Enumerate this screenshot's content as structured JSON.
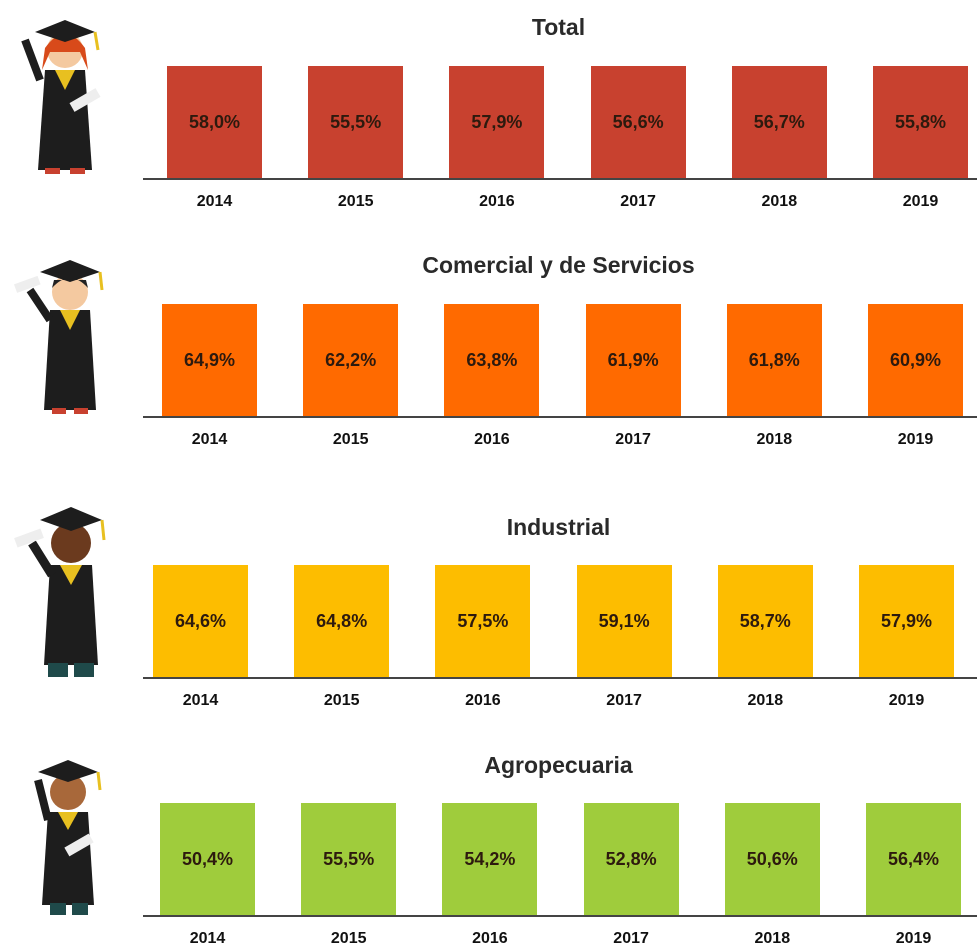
{
  "panels": [
    {
      "title": "Total",
      "tiles": [
        {
          "year": "2014",
          "value": "58,0%"
        },
        {
          "year": "2015",
          "value": "55,5%"
        },
        {
          "year": "2016",
          "value": "57,9%"
        },
        {
          "year": "2017",
          "value": "56,6%"
        },
        {
          "year": "2018",
          "value": "56,7%"
        },
        {
          "year": "2019",
          "value": "55,8%"
        }
      ]
    },
    {
      "title": "Comercial y de Servicios",
      "tiles": [
        {
          "year": "2014",
          "value": "64,9%"
        },
        {
          "year": "2015",
          "value": "62,2%"
        },
        {
          "year": "2016",
          "value": "63,8%"
        },
        {
          "year": "2017",
          "value": "61,9%"
        },
        {
          "year": "2018",
          "value": "61,8%"
        },
        {
          "year": "2019",
          "value": "60,9%"
        }
      ]
    },
    {
      "title": "Industrial",
      "tiles": [
        {
          "year": "2014",
          "value": "64,6%"
        },
        {
          "year": "2015",
          "value": "64,8%"
        },
        {
          "year": "2016",
          "value": "57,5%"
        },
        {
          "year": "2017",
          "value": "59,1%"
        },
        {
          "year": "2018",
          "value": "58,7%"
        },
        {
          "year": "2019",
          "value": "57,9%"
        }
      ]
    },
    {
      "title": "Agropecuaria",
      "tiles": [
        {
          "year": "2014",
          "value": "50,4%"
        },
        {
          "year": "2015",
          "value": "55,5%"
        },
        {
          "year": "2016",
          "value": "54,2%"
        },
        {
          "year": "2017",
          "value": "52,8%"
        },
        {
          "year": "2018",
          "value": "50,6%"
        },
        {
          "year": "2019",
          "value": "56,4%"
        }
      ]
    }
  ]
}
